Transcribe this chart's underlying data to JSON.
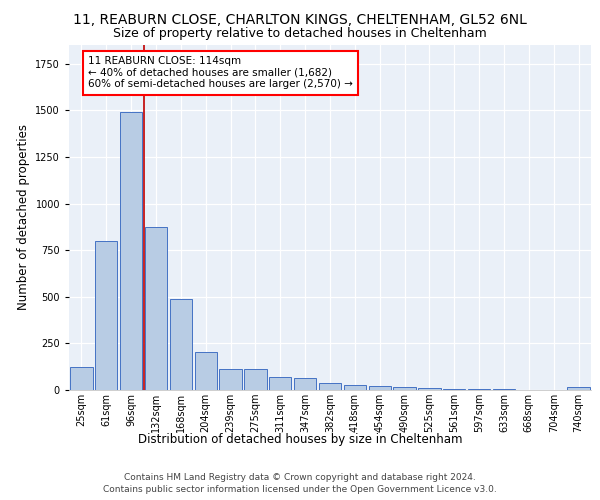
{
  "title1": "11, REABURN CLOSE, CHARLTON KINGS, CHELTENHAM, GL52 6NL",
  "title2": "Size of property relative to detached houses in Cheltenham",
  "xlabel": "Distribution of detached houses by size in Cheltenham",
  "ylabel": "Number of detached properties",
  "categories": [
    "25sqm",
    "61sqm",
    "96sqm",
    "132sqm",
    "168sqm",
    "204sqm",
    "239sqm",
    "275sqm",
    "311sqm",
    "347sqm",
    "382sqm",
    "418sqm",
    "454sqm",
    "490sqm",
    "525sqm",
    "561sqm",
    "597sqm",
    "633sqm",
    "668sqm",
    "704sqm",
    "740sqm"
  ],
  "values": [
    125,
    800,
    1490,
    875,
    490,
    205,
    110,
    110,
    68,
    65,
    40,
    25,
    20,
    15,
    10,
    8,
    5,
    3,
    2,
    1,
    15
  ],
  "bar_color": "#b8cce4",
  "bar_edge_color": "#4472c4",
  "property_label": "11 REABURN CLOSE: 114sqm",
  "annotation_line1": "← 40% of detached houses are smaller (1,682)",
  "annotation_line2": "60% of semi-detached houses are larger (2,570) →",
  "vline_color": "#c00000",
  "vline_position": 2.52,
  "footer1": "Contains HM Land Registry data © Crown copyright and database right 2024.",
  "footer2": "Contains public sector information licensed under the Open Government Licence v3.0.",
  "bg_color": "#eaf0f8",
  "ylim": [
    0,
    1850
  ],
  "title1_fontsize": 10,
  "title2_fontsize": 9,
  "xlabel_fontsize": 8.5,
  "ylabel_fontsize": 8.5,
  "tick_fontsize": 7,
  "annotation_fontsize": 7.5,
  "footer_fontsize": 6.5
}
